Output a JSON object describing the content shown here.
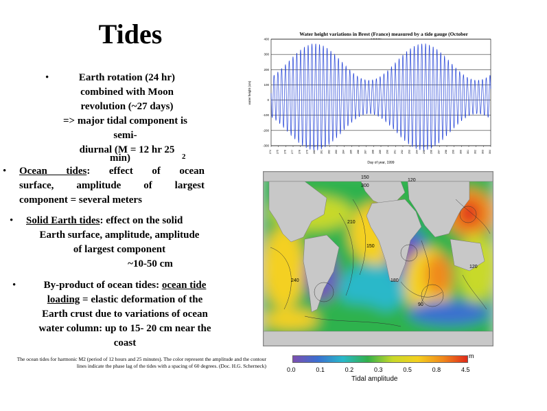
{
  "slide": {
    "title": "Tides",
    "bullets": {
      "b1_lines": [
        "Earth rotation (24 hr)",
        "combined with Moon",
        "revolution (~27 days)",
        "=> major tidal component is",
        "semi-",
        "diurnal (M = 12 hr 25",
        "min)"
      ],
      "b1_sub": "2",
      "b2_head": "Ocean tides",
      "b2_line1_rest": ": effect of ocean",
      "b2_line2": "surface, amplitude of largest",
      "b2_line3": "component = several meters",
      "b3_head": "Solid Earth tides",
      "b3_line1_rest": ": effect on the solid",
      "b3_line2": "Earth surface, amplitude, amplitude",
      "b3_line3": "of largest component",
      "b3_line4": "~10-50 cm",
      "b4_line1_a": "By-product of ocean tides: ",
      "b4_line1_b": "ocean tide",
      "b4_line2_a": "loading",
      "b4_line2_b": " = elastic deformation of the",
      "b4_line3": "Earth crust due to variations of ocean",
      "b4_line4": "water column: up to 15- 20 cm near the",
      "b4_line5": "coast"
    },
    "caption": "The ocean tides for harmonic M2 (period of 12 hours and 25 minutes). The color represent the amplitude and the contour lines indicate the phase lag of the tides with a spacing of 60 degrees. (Doc. H.G. Scherneck)"
  },
  "chart_data": {
    "type": "line",
    "title": "Water height variations in Brest (France) measured by a tide gauge (October 1999)",
    "xlabel": "Day of year, 1999",
    "ylabel": "water height (cm)",
    "ylim": [
      -300,
      400
    ],
    "y_ticks": [
      "400",
      "300",
      "200",
      "100",
      "0",
      "-100",
      "-200",
      "-300"
    ],
    "x_ticks": [
      "274",
      "275",
      "276",
      "277",
      "278",
      "279",
      "280",
      "281",
      "282",
      "283",
      "284",
      "285",
      "286",
      "287",
      "288",
      "289",
      "290",
      "291",
      "292",
      "293",
      "294",
      "295",
      "296",
      "297",
      "298",
      "299",
      "300",
      "301",
      "302",
      "303",
      "304"
    ],
    "x_range": [
      274,
      304
    ],
    "period_days": 0.5175,
    "spring_neap_period_days": 14.77,
    "amplitude_range_cm": [
      110,
      350
    ],
    "color": "#1f3fd6",
    "grid": true
  },
  "map": {
    "phase_labels": [
      "150",
      "300",
      "120",
      "210",
      "150",
      "240",
      "90",
      "120",
      "180"
    ],
    "colorbar": {
      "ticks": [
        "0.0",
        "0.1",
        "0.2",
        "0.3",
        "0.5",
        "0.8",
        "4.5"
      ],
      "unit": "m",
      "label": "Tidal amplitude",
      "colors": [
        "#7c4fb0",
        "#3a6fd0",
        "#29b8c9",
        "#33b04a",
        "#c8d92a",
        "#f4d020",
        "#f08a1c",
        "#e02a1a"
      ]
    }
  }
}
